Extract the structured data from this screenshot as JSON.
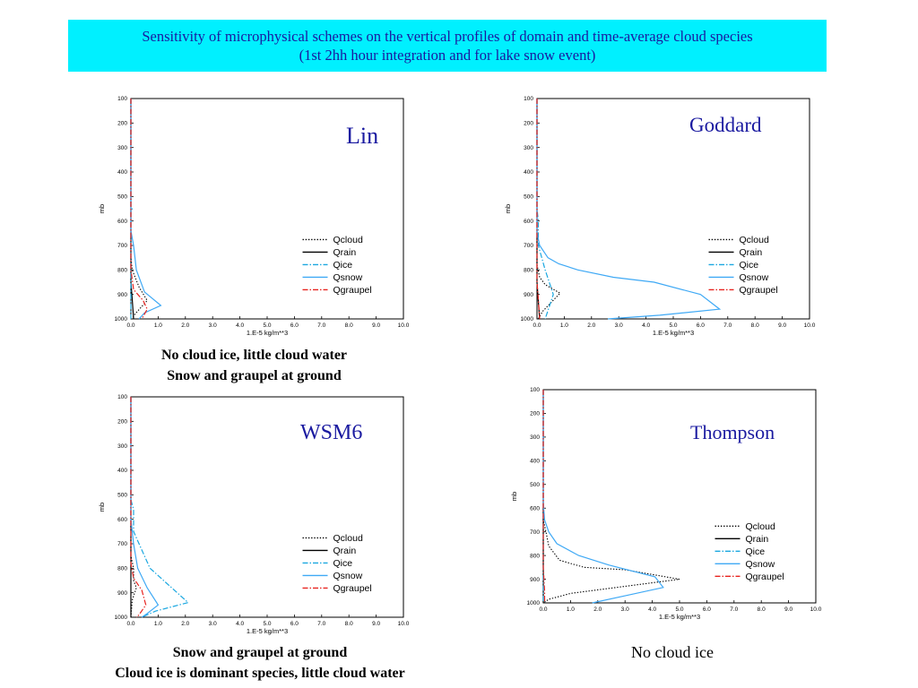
{
  "header": {
    "title_line1": "Sensitivity of microphysical schemes on the vertical profiles of domain and time-average cloud species",
    "title_line2": "(1st 2hh hour integration and for lake snow event)"
  },
  "captions": {
    "lin": [
      "No cloud ice, little cloud water",
      "Snow and graupel at ground"
    ],
    "wsm6": [
      "Snow and graupel at ground",
      "Cloud ice is dominant species, little cloud water"
    ],
    "thompson": [
      "No cloud ice"
    ]
  },
  "colors": {
    "header_bg": "#00f0ff",
    "header_text": "#1a1aa0",
    "scheme_label": "#1a1aa0",
    "qcloud": "#000000",
    "qrain": "#000000",
    "qice": "#1aa7e0",
    "qsnow": "#3fa9f5",
    "qgraupel": "#e8231f"
  },
  "chart_data": [
    {
      "type": "line",
      "scheme": "Lin",
      "xlabel": "1.E-5 kg/m**3",
      "ylabel": "mb",
      "xlim": [
        0,
        10
      ],
      "ylim": [
        1000,
        100
      ],
      "x_ticks": [
        "0.0",
        "1.0",
        "2.0",
        "3.0",
        "4.0",
        "5.0",
        "6.0",
        "7.0",
        "8.0",
        "9.0",
        "10.0"
      ],
      "y_ticks": [
        "100",
        "200",
        "300",
        "400",
        "500",
        "600",
        "700",
        "800",
        "900",
        "1000"
      ],
      "legend_position": "right",
      "series": [
        {
          "name": "Qcloud",
          "style": "dotted",
          "points": [
            [
              0,
              100
            ],
            [
              0,
              750
            ],
            [
              0.05,
              800
            ],
            [
              0.3,
              870
            ],
            [
              0.6,
              925
            ],
            [
              0.15,
              980
            ],
            [
              0.05,
              1000
            ]
          ]
        },
        {
          "name": "Qrain",
          "style": "solid",
          "points": [
            [
              0,
              100
            ],
            [
              0,
              850
            ],
            [
              0.05,
              920
            ],
            [
              0.1,
              1000
            ]
          ]
        },
        {
          "name": "Qice",
          "style": "dashdot",
          "points": [
            [
              0,
              100
            ],
            [
              0,
              540
            ],
            [
              0.05,
              550
            ],
            [
              0,
              560
            ],
            [
              0,
              1000
            ]
          ]
        },
        {
          "name": "Qsnow",
          "style": "solid",
          "points": [
            [
              0,
              100
            ],
            [
              0,
              640
            ],
            [
              0.1,
              700
            ],
            [
              0.2,
              800
            ],
            [
              0.5,
              890
            ],
            [
              1.1,
              945
            ],
            [
              0.5,
              975
            ],
            [
              0.3,
              1000
            ]
          ]
        },
        {
          "name": "Qgraupel",
          "style": "dashdot",
          "points": [
            [
              0,
              100
            ],
            [
              0,
              800
            ],
            [
              0.1,
              880
            ],
            [
              0.45,
              925
            ],
            [
              0.6,
              960
            ],
            [
              0.4,
              1000
            ]
          ]
        }
      ]
    },
    {
      "type": "line",
      "scheme": "Goddard",
      "xlabel": "1.E-5 kg/m**3",
      "ylabel": "mb",
      "xlim": [
        0,
        10
      ],
      "ylim": [
        1000,
        100
      ],
      "x_ticks": [
        "0.0",
        "1.0",
        "2.0",
        "3.0",
        "4.0",
        "5.0",
        "6.0",
        "7.0",
        "8.0",
        "9.0",
        "10.0"
      ],
      "y_ticks": [
        "100",
        "200",
        "300",
        "400",
        "500",
        "600",
        "700",
        "800",
        "900",
        "1000"
      ],
      "legend_position": "right",
      "series": [
        {
          "name": "Qcloud",
          "style": "dotted",
          "points": [
            [
              0,
              100
            ],
            [
              0,
              780
            ],
            [
              0.1,
              830
            ],
            [
              0.3,
              860
            ],
            [
              0.85,
              895
            ],
            [
              0.5,
              935
            ],
            [
              0.2,
              970
            ],
            [
              0.05,
              1000
            ]
          ]
        },
        {
          "name": "Qrain",
          "style": "solid",
          "points": [
            [
              0,
              100
            ],
            [
              0,
              850
            ],
            [
              0.05,
              930
            ],
            [
              0.1,
              1000
            ]
          ]
        },
        {
          "name": "Qice",
          "style": "dashdot",
          "points": [
            [
              0,
              100
            ],
            [
              0,
              550
            ],
            [
              0.05,
              600
            ],
            [
              0.05,
              700
            ],
            [
              0.3,
              800
            ],
            [
              0.6,
              900
            ],
            [
              0.45,
              950
            ],
            [
              0.3,
              1000
            ]
          ]
        },
        {
          "name": "Qsnow",
          "style": "solid",
          "points": [
            [
              0,
              100
            ],
            [
              0,
              650
            ],
            [
              0.1,
              700
            ],
            [
              0.4,
              750
            ],
            [
              0.8,
              775
            ],
            [
              1.5,
              800
            ],
            [
              2.8,
              830
            ],
            [
              4.3,
              850
            ],
            [
              6.0,
              900
            ],
            [
              6.7,
              960
            ],
            [
              4.5,
              985
            ],
            [
              2.6,
              1000
            ]
          ]
        },
        {
          "name": "Qgraupel",
          "style": "dashdot",
          "points": [
            [
              0,
              100
            ],
            [
              0,
              850
            ],
            [
              0.05,
              920
            ],
            [
              0.1,
              1000
            ]
          ]
        }
      ]
    },
    {
      "type": "line",
      "scheme": "WSM6",
      "xlabel": "1.E-5 kg/m**3",
      "ylabel": "mb",
      "xlim": [
        0,
        10
      ],
      "ylim": [
        1000,
        100
      ],
      "x_ticks": [
        "0.0",
        "1.0",
        "2.0",
        "3.0",
        "4.0",
        "5.0",
        "6.0",
        "7.0",
        "8.0",
        "9.0",
        "10.0"
      ],
      "y_ticks": [
        "100",
        "200",
        "300",
        "400",
        "500",
        "600",
        "700",
        "800",
        "900",
        "1000"
      ],
      "legend_position": "right",
      "series": [
        {
          "name": "Qcloud",
          "style": "dotted",
          "points": [
            [
              0,
              100
            ],
            [
              0,
              750
            ],
            [
              0.1,
              800
            ],
            [
              0.1,
              850
            ],
            [
              0.2,
              880
            ],
            [
              0.05,
              930
            ],
            [
              0,
              1000
            ]
          ]
        },
        {
          "name": "Qrain",
          "style": "solid",
          "points": [
            [
              0,
              100
            ],
            [
              0,
              1000
            ]
          ]
        },
        {
          "name": "Qice",
          "style": "dashdot",
          "points": [
            [
              0,
              100
            ],
            [
              0,
              520
            ],
            [
              0.1,
              560
            ],
            [
              0.1,
              650
            ],
            [
              0.3,
              700
            ],
            [
              0.7,
              800
            ],
            [
              1.5,
              880
            ],
            [
              2.1,
              940
            ],
            [
              0.9,
              975
            ],
            [
              0.4,
              1000
            ]
          ]
        },
        {
          "name": "Qsnow",
          "style": "solid",
          "points": [
            [
              0,
              100
            ],
            [
              0,
              600
            ],
            [
              0.1,
              700
            ],
            [
              0.25,
              800
            ],
            [
              0.6,
              880
            ],
            [
              1.0,
              950
            ],
            [
              0.6,
              985
            ],
            [
              0.4,
              1000
            ]
          ]
        },
        {
          "name": "Qgraupel",
          "style": "dashdot",
          "points": [
            [
              0,
              100
            ],
            [
              0,
              780
            ],
            [
              0.1,
              840
            ],
            [
              0.4,
              890
            ],
            [
              0.55,
              950
            ],
            [
              0.3,
              990
            ],
            [
              0.2,
              1000
            ]
          ]
        }
      ]
    },
    {
      "type": "line",
      "scheme": "Thompson",
      "xlabel": "1.E-5 kg/m**3",
      "ylabel": "mb",
      "xlim": [
        0,
        10
      ],
      "ylim": [
        1000,
        100
      ],
      "x_ticks": [
        "0.0",
        "1.0",
        "2.0",
        "3.0",
        "4.0",
        "5.0",
        "6.0",
        "7.0",
        "8.0",
        "9.0",
        "10.0"
      ],
      "y_ticks": [
        "100",
        "200",
        "300",
        "400",
        "500",
        "600",
        "700",
        "800",
        "900",
        "1000"
      ],
      "legend_position": "right",
      "series": [
        {
          "name": "Qcloud",
          "style": "dotted",
          "points": [
            [
              0,
              100
            ],
            [
              0,
              650
            ],
            [
              0.1,
              700
            ],
            [
              0.2,
              760
            ],
            [
              0.6,
              820
            ],
            [
              1.5,
              850
            ],
            [
              3.0,
              860
            ],
            [
              5.0,
              900
            ],
            [
              3.0,
              930
            ],
            [
              1.0,
              960
            ],
            [
              0.2,
              985
            ],
            [
              0,
              1000
            ]
          ]
        },
        {
          "name": "Qrain",
          "style": "solid",
          "points": [
            [
              0,
              100
            ],
            [
              0,
              1000
            ]
          ]
        },
        {
          "name": "Qice",
          "style": "dashdot",
          "points": [
            [
              0,
              100
            ],
            [
              0,
              1000
            ]
          ]
        },
        {
          "name": "Qsnow",
          "style": "solid",
          "points": [
            [
              0,
              100
            ],
            [
              0,
              580
            ],
            [
              0.05,
              650
            ],
            [
              0.2,
              700
            ],
            [
              0.5,
              750
            ],
            [
              1.3,
              800
            ],
            [
              2.4,
              840
            ],
            [
              4.1,
              890
            ],
            [
              4.4,
              935
            ],
            [
              3.0,
              970
            ],
            [
              1.8,
              1000
            ]
          ]
        },
        {
          "name": "Qgraupel",
          "style": "dashdot",
          "points": [
            [
              0,
              100
            ],
            [
              0,
              850
            ],
            [
              0.05,
              950
            ],
            [
              0.05,
              1000
            ]
          ]
        }
      ]
    }
  ]
}
